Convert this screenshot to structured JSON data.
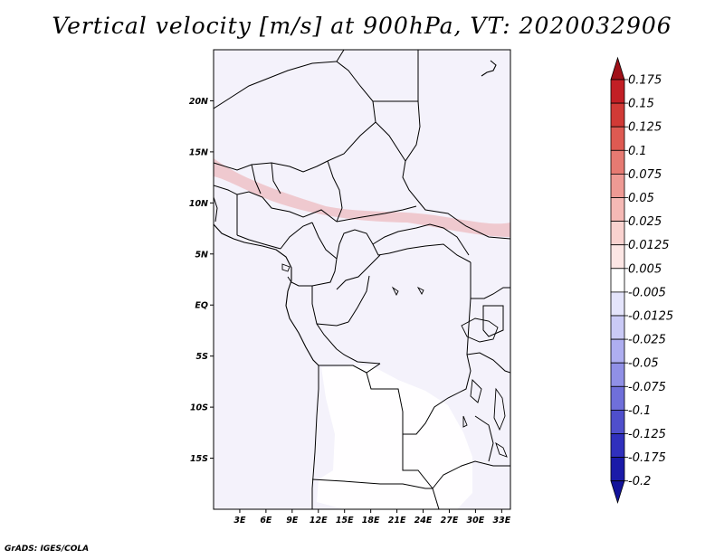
{
  "title": "Vertical velocity [m/s] at 900hPa, VT: 2020032906",
  "credit": "GrADS: IGES/COLA",
  "map": {
    "variable": "Vertical velocity",
    "units": "m/s",
    "level": "900hPa",
    "valid_time": "2020032906",
    "lon_range": [
      0,
      34
    ],
    "lat_range": [
      -20,
      25
    ],
    "lon_ticks": [
      {
        "value": 3,
        "label": "3E"
      },
      {
        "value": 6,
        "label": "6E"
      },
      {
        "value": 9,
        "label": "9E"
      },
      {
        "value": 12,
        "label": "12E"
      },
      {
        "value": 15,
        "label": "15E"
      },
      {
        "value": 18,
        "label": "18E"
      },
      {
        "value": 21,
        "label": "21E"
      },
      {
        "value": 24,
        "label": "24E"
      },
      {
        "value": 27,
        "label": "27E"
      },
      {
        "value": 30,
        "label": "30E"
      },
      {
        "value": 33,
        "label": "33E"
      }
    ],
    "lat_ticks": [
      {
        "value": 20,
        "label": "20N"
      },
      {
        "value": 15,
        "label": "15N"
      },
      {
        "value": 10,
        "label": "10N"
      },
      {
        "value": 5,
        "label": "5N"
      },
      {
        "value": 0,
        "label": "EQ"
      },
      {
        "value": -5,
        "label": "5S"
      },
      {
        "value": -10,
        "label": "10S"
      },
      {
        "value": -15,
        "label": "15S"
      }
    ]
  },
  "colorbar": {
    "levels": [
      {
        "label": "0.175",
        "color": "#b3121e"
      },
      {
        "label": "0.15",
        "color": "#c21f25"
      },
      {
        "label": "0.125",
        "color": "#d13a36"
      },
      {
        "label": "0.1",
        "color": "#de5a52"
      },
      {
        "label": "0.075",
        "color": "#e67a72"
      },
      {
        "label": "0.05",
        "color": "#ee9a94"
      },
      {
        "label": "0.025",
        "color": "#f5b9b5"
      },
      {
        "label": "0.0125",
        "color": "#f9d2cf"
      },
      {
        "label": "0.005",
        "color": "#fce6e4"
      },
      {
        "label": "-0.005",
        "color": "#ffffff"
      },
      {
        "label": "-0.0125",
        "color": "#e4e4fb"
      },
      {
        "label": "-0.025",
        "color": "#cacaf6"
      },
      {
        "label": "-0.05",
        "color": "#aeaef0"
      },
      {
        "label": "-0.075",
        "color": "#9090e6"
      },
      {
        "label": "-0.1",
        "color": "#6f6fda"
      },
      {
        "label": "-0.125",
        "color": "#4f4fcc"
      },
      {
        "label": "-0.175",
        "color": "#3030bd"
      },
      {
        "label": "-0.2",
        "color": "#1a1aa8"
      }
    ],
    "top_color": "#a01018",
    "bottom_color": "#13139a"
  }
}
